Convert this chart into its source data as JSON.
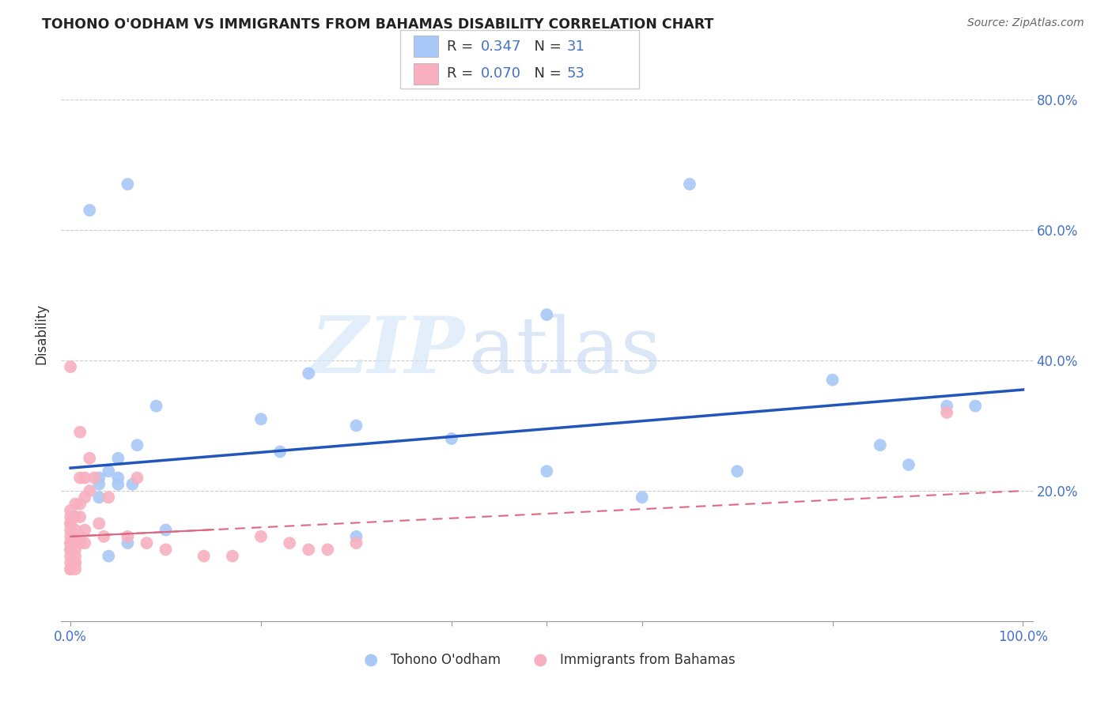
{
  "title": "TOHONO O'ODHAM VS IMMIGRANTS FROM BAHAMAS DISABILITY CORRELATION CHART",
  "source": "Source: ZipAtlas.com",
  "ylabel": "Disability",
  "blue_R": 0.347,
  "blue_N": 31,
  "pink_R": 0.07,
  "pink_N": 53,
  "blue_scatter_x": [
    0.02,
    0.06,
    0.5,
    0.09,
    0.2,
    0.07,
    0.05,
    0.04,
    0.03,
    0.05,
    0.05,
    0.065,
    0.65,
    0.8,
    0.88,
    0.92,
    0.7,
    0.22,
    0.3,
    0.5,
    0.6,
    0.03,
    0.03,
    0.95,
    0.85,
    0.25,
    0.1,
    0.04,
    0.06,
    0.4,
    0.3
  ],
  "blue_scatter_y": [
    0.63,
    0.67,
    0.47,
    0.33,
    0.31,
    0.27,
    0.25,
    0.23,
    0.22,
    0.22,
    0.21,
    0.21,
    0.67,
    0.37,
    0.24,
    0.33,
    0.23,
    0.26,
    0.3,
    0.23,
    0.19,
    0.21,
    0.19,
    0.33,
    0.27,
    0.38,
    0.14,
    0.1,
    0.12,
    0.28,
    0.13
  ],
  "pink_scatter_x": [
    0.0,
    0.0,
    0.0,
    0.0,
    0.0,
    0.0,
    0.0,
    0.0,
    0.0,
    0.0,
    0.0,
    0.0,
    0.0,
    0.005,
    0.005,
    0.005,
    0.005,
    0.005,
    0.005,
    0.005,
    0.005,
    0.01,
    0.01,
    0.01,
    0.01,
    0.01,
    0.015,
    0.015,
    0.015,
    0.02,
    0.02,
    0.025,
    0.03,
    0.035,
    0.04,
    0.06,
    0.07,
    0.08,
    0.1,
    0.14,
    0.17,
    0.2,
    0.23,
    0.25,
    0.27,
    0.3,
    0.0,
    0.0,
    0.005,
    0.005,
    0.01,
    0.015,
    0.92
  ],
  "pink_scatter_y": [
    0.39,
    0.17,
    0.16,
    0.15,
    0.15,
    0.14,
    0.13,
    0.12,
    0.12,
    0.11,
    0.11,
    0.1,
    0.09,
    0.18,
    0.16,
    0.14,
    0.13,
    0.12,
    0.11,
    0.1,
    0.09,
    0.29,
    0.22,
    0.18,
    0.16,
    0.13,
    0.22,
    0.19,
    0.14,
    0.25,
    0.2,
    0.22,
    0.15,
    0.13,
    0.19,
    0.13,
    0.22,
    0.12,
    0.11,
    0.1,
    0.1,
    0.13,
    0.12,
    0.11,
    0.11,
    0.12,
    0.08,
    0.08,
    0.08,
    0.09,
    0.12,
    0.12,
    0.32
  ],
  "blue_line_x": [
    0.0,
    1.0
  ],
  "blue_line_y": [
    0.235,
    0.355
  ],
  "pink_line_x": [
    0.0,
    1.0
  ],
  "pink_line_y": [
    0.13,
    0.2
  ],
  "watermark_zip": "ZIP",
  "watermark_atlas": "atlas",
  "legend_blue_label": "Tohono O'odham",
  "legend_pink_label": "Immigrants from Bahamas",
  "scatter_size": 130,
  "blue_color": "#a8c8f8",
  "blue_dark": "#4472c4",
  "pink_color": "#f8b0c0",
  "pink_dark": "#e07090",
  "background_color": "#ffffff",
  "grid_color": "#cccccc",
  "xlim": [
    -0.01,
    1.01
  ],
  "ylim": [
    0.0,
    0.88
  ]
}
